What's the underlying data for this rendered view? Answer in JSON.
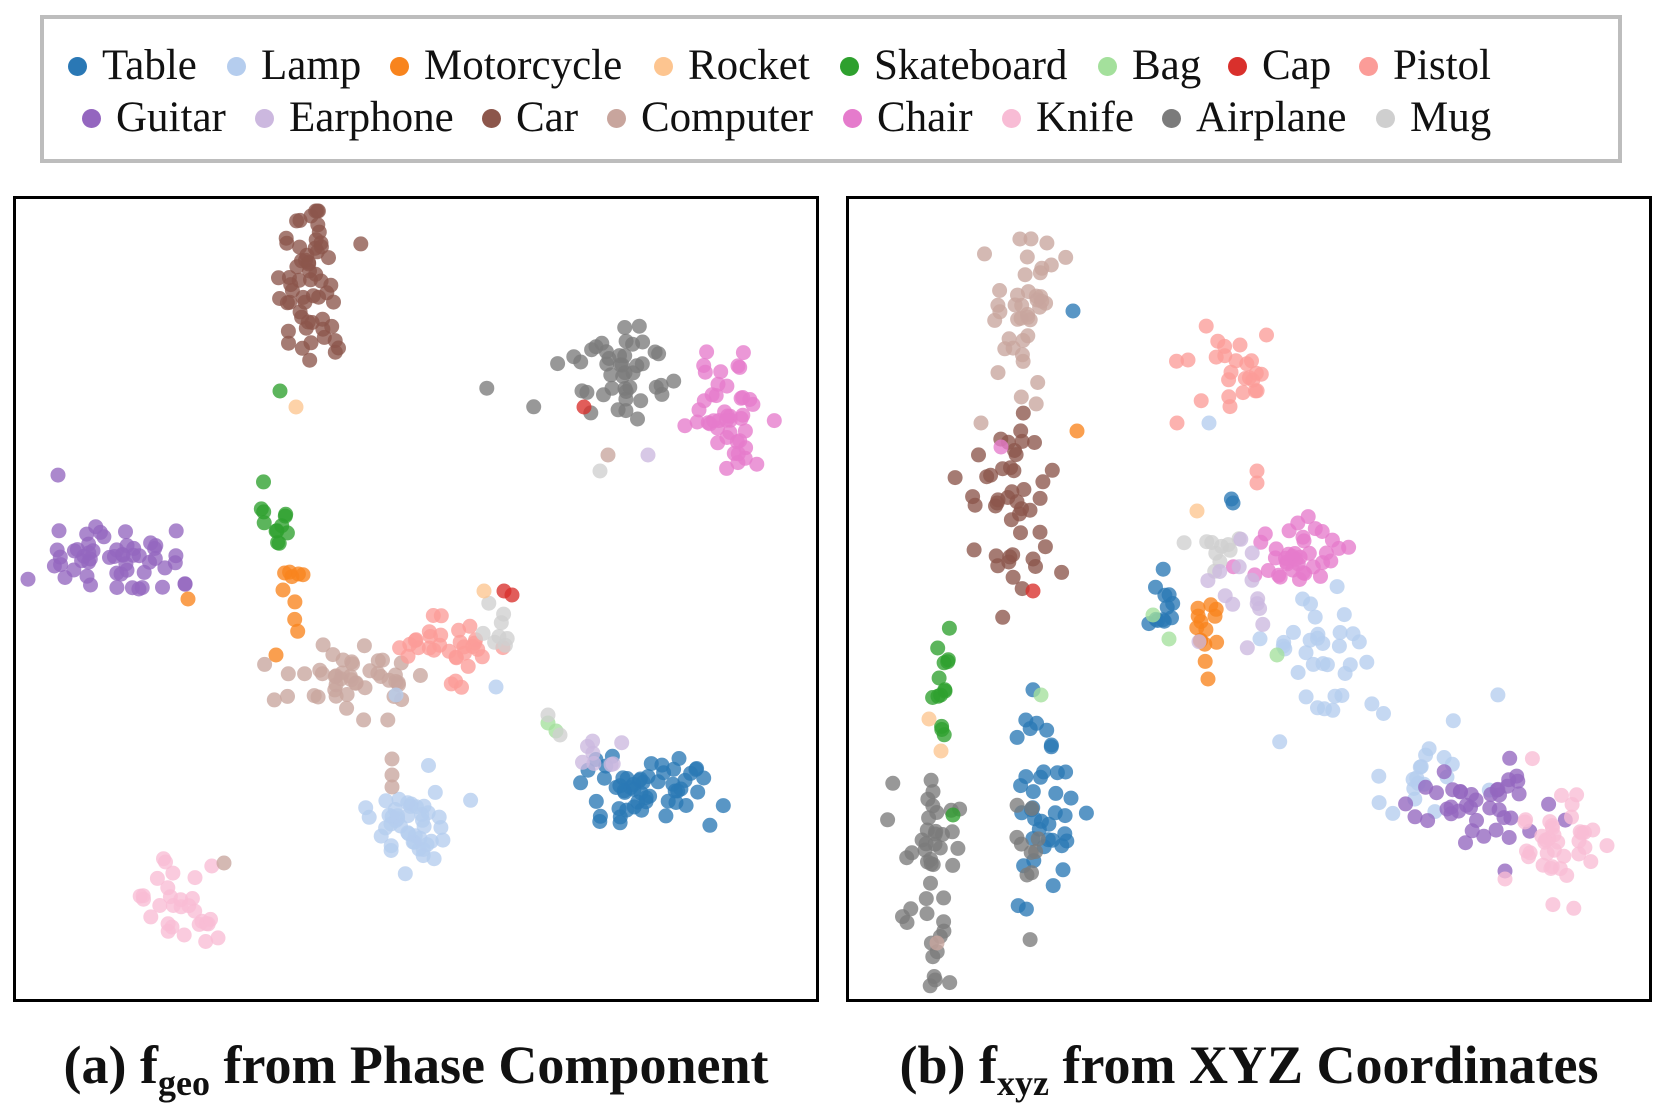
{
  "legend": {
    "items": [
      {
        "label": "Table",
        "color": "#2a78b5"
      },
      {
        "label": "Lamp",
        "color": "#b5cdee"
      },
      {
        "label": "Motorcycle",
        "color": "#f8841d"
      },
      {
        "label": "Rocket",
        "color": "#fdc590"
      },
      {
        "label": "Skateboard",
        "color": "#2ea02e"
      },
      {
        "label": "Bag",
        "color": "#a4e09c"
      },
      {
        "label": "Cap",
        "color": "#d9302c"
      },
      {
        "label": "Pistol",
        "color": "#fb9c98"
      },
      {
        "label": "Guitar",
        "color": "#9466bf"
      },
      {
        "label": "Earphone",
        "color": "#ccb8df"
      },
      {
        "label": "Car",
        "color": "#8c564b"
      },
      {
        "label": "Computer",
        "color": "#c8a59d"
      },
      {
        "label": "Chair",
        "color": "#e57bcc"
      },
      {
        "label": "Knife",
        "color": "#f8bcd5"
      },
      {
        "label": "Airplane",
        "color": "#7b7b7b"
      },
      {
        "label": "Mug",
        "color": "#cfcfcf"
      }
    ]
  },
  "captions": {
    "a": {
      "prefix": "(a) f",
      "sub": "geo",
      "suffix": " from Phase Component"
    },
    "b": {
      "prefix": "(b) f",
      "sub": "xyz",
      "suffix": " from XYZ Coordinates"
    }
  },
  "chart_data": [
    {
      "type": "scatter",
      "title": "(a) f_geo from Phase Component",
      "clusters": [
        {
          "series": "Car",
          "cx": 0.37,
          "cy": 0.1,
          "sx": 0.022,
          "sy": 0.06,
          "n": 60
        },
        {
          "series": "Airplane",
          "cx": 0.75,
          "cy": 0.22,
          "sx": 0.04,
          "sy": 0.035,
          "n": 45
        },
        {
          "series": "Chair",
          "cx": 0.89,
          "cy": 0.27,
          "sx": 0.025,
          "sy": 0.045,
          "n": 45
        },
        {
          "series": "Guitar",
          "cx": 0.13,
          "cy": 0.45,
          "sx": 0.05,
          "sy": 0.025,
          "n": 55
        },
        {
          "series": "Skateboard",
          "cx": 0.325,
          "cy": 0.4,
          "sx": 0.01,
          "sy": 0.02,
          "n": 12
        },
        {
          "series": "Motorcycle",
          "cx": 0.345,
          "cy": 0.48,
          "sx": 0.008,
          "sy": 0.025,
          "n": 9
        },
        {
          "series": "Computer",
          "cx": 0.41,
          "cy": 0.6,
          "sx": 0.04,
          "sy": 0.022,
          "n": 45
        },
        {
          "series": "Pistol",
          "cx": 0.55,
          "cy": 0.56,
          "sx": 0.028,
          "sy": 0.025,
          "n": 32
        },
        {
          "series": "Mug",
          "cx": 0.6,
          "cy": 0.54,
          "sx": 0.012,
          "sy": 0.015,
          "n": 8
        },
        {
          "series": "Table",
          "cx": 0.79,
          "cy": 0.74,
          "sx": 0.04,
          "sy": 0.022,
          "n": 55
        },
        {
          "series": "Earphone",
          "cx": 0.72,
          "cy": 0.69,
          "sx": 0.02,
          "sy": 0.012,
          "n": 8
        },
        {
          "series": "Lamp",
          "cx": 0.49,
          "cy": 0.78,
          "sx": 0.028,
          "sy": 0.025,
          "n": 45
        },
        {
          "series": "Knife",
          "cx": 0.205,
          "cy": 0.88,
          "sx": 0.022,
          "sy": 0.022,
          "n": 30
        }
      ],
      "points": [
        {
          "series": "Skateboard",
          "x": 0.33,
          "y": 0.24
        },
        {
          "series": "Rocket",
          "x": 0.35,
          "y": 0.26
        },
        {
          "series": "Cap",
          "x": 0.71,
          "y": 0.26
        },
        {
          "series": "Computer",
          "x": 0.74,
          "y": 0.32
        },
        {
          "series": "Earphone",
          "x": 0.79,
          "y": 0.32
        },
        {
          "series": "Mug",
          "x": 0.73,
          "y": 0.34
        },
        {
          "series": "Motorcycle",
          "x": 0.215,
          "y": 0.5
        },
        {
          "series": "Cap",
          "x": 0.61,
          "y": 0.49
        },
        {
          "series": "Cap",
          "x": 0.62,
          "y": 0.495
        },
        {
          "series": "Rocket",
          "x": 0.585,
          "y": 0.49
        },
        {
          "series": "Motorcycle",
          "x": 0.325,
          "y": 0.57
        },
        {
          "series": "Lamp",
          "x": 0.475,
          "y": 0.62
        },
        {
          "series": "Lamp",
          "x": 0.6,
          "y": 0.61
        },
        {
          "series": "Computer",
          "x": 0.47,
          "y": 0.7
        },
        {
          "series": "Computer",
          "x": 0.47,
          "y": 0.72
        },
        {
          "series": "Computer",
          "x": 0.47,
          "y": 0.735
        },
        {
          "series": "Bag",
          "x": 0.665,
          "y": 0.655
        },
        {
          "series": "Bag",
          "x": 0.675,
          "y": 0.665
        },
        {
          "series": "Mug",
          "x": 0.665,
          "y": 0.645
        },
        {
          "series": "Mug",
          "x": 0.68,
          "y": 0.67
        },
        {
          "series": "Computer",
          "x": 0.26,
          "y": 0.83
        }
      ]
    },
    {
      "type": "scatter",
      "title": "(b) f_xyz from XYZ Coordinates",
      "clusters": [
        {
          "series": "Computer",
          "cx": 0.22,
          "cy": 0.14,
          "sx": 0.025,
          "sy": 0.06,
          "n": 40
        },
        {
          "series": "Car",
          "cx": 0.2,
          "cy": 0.37,
          "sx": 0.03,
          "sy": 0.05,
          "n": 45
        },
        {
          "series": "Pistol",
          "cx": 0.48,
          "cy": 0.21,
          "sx": 0.03,
          "sy": 0.025,
          "n": 25
        },
        {
          "series": "Chair",
          "cx": 0.56,
          "cy": 0.45,
          "sx": 0.035,
          "sy": 0.022,
          "n": 38
        },
        {
          "series": "Lamp",
          "cx": 0.59,
          "cy": 0.57,
          "sx": 0.04,
          "sy": 0.035,
          "n": 35
        },
        {
          "series": "Table",
          "cx": 0.39,
          "cy": 0.5,
          "sx": 0.012,
          "sy": 0.03,
          "n": 12
        },
        {
          "series": "Motorcycle",
          "cx": 0.45,
          "cy": 0.53,
          "sx": 0.01,
          "sy": 0.03,
          "n": 14
        },
        {
          "series": "Mug",
          "cx": 0.46,
          "cy": 0.44,
          "sx": 0.018,
          "sy": 0.015,
          "n": 10
        },
        {
          "series": "Earphone",
          "cx": 0.49,
          "cy": 0.5,
          "sx": 0.025,
          "sy": 0.03,
          "n": 14
        },
        {
          "series": "Skateboard",
          "cx": 0.117,
          "cy": 0.59,
          "sx": 0.008,
          "sy": 0.04,
          "n": 14
        },
        {
          "series": "Airplane",
          "cx": 0.1,
          "cy": 0.84,
          "sx": 0.02,
          "sy": 0.07,
          "n": 45
        },
        {
          "series": "Table",
          "cx": 0.24,
          "cy": 0.76,
          "sx": 0.022,
          "sy": 0.07,
          "n": 40
        },
        {
          "series": "Airplane",
          "cx": 0.22,
          "cy": 0.82,
          "sx": 0.01,
          "sy": 0.03,
          "n": 10
        },
        {
          "series": "Lamp",
          "cx": 0.73,
          "cy": 0.72,
          "sx": 0.03,
          "sy": 0.03,
          "n": 20
        },
        {
          "series": "Guitar",
          "cx": 0.79,
          "cy": 0.76,
          "sx": 0.04,
          "sy": 0.025,
          "n": 40
        },
        {
          "series": "Knife",
          "cx": 0.89,
          "cy": 0.8,
          "sx": 0.03,
          "sy": 0.035,
          "n": 38
        }
      ],
      "points": [
        {
          "series": "Table",
          "x": 0.28,
          "y": 0.14
        },
        {
          "series": "Motorcycle",
          "x": 0.285,
          "y": 0.29
        },
        {
          "series": "Computer",
          "x": 0.165,
          "y": 0.28
        },
        {
          "series": "Chair",
          "x": 0.19,
          "y": 0.31
        },
        {
          "series": "Cap",
          "x": 0.23,
          "y": 0.49
        },
        {
          "series": "Car",
          "x": 0.23,
          "y": 0.45
        },
        {
          "series": "Lamp",
          "x": 0.45,
          "y": 0.28
        },
        {
          "series": "Pistol",
          "x": 0.41,
          "y": 0.28
        },
        {
          "series": "Pistol",
          "x": 0.51,
          "y": 0.34
        },
        {
          "series": "Pistol",
          "x": 0.51,
          "y": 0.355
        },
        {
          "series": "Table",
          "x": 0.48,
          "y": 0.38
        },
        {
          "series": "Table",
          "x": 0.478,
          "y": 0.375
        },
        {
          "series": "Rocket",
          "x": 0.435,
          "y": 0.39
        },
        {
          "series": "Bag",
          "x": 0.38,
          "y": 0.52
        },
        {
          "series": "Bag",
          "x": 0.4,
          "y": 0.55
        },
        {
          "series": "Bag",
          "x": 0.535,
          "y": 0.57
        },
        {
          "series": "Bag",
          "x": 0.24,
          "y": 0.62
        },
        {
          "series": "Rocket",
          "x": 0.1,
          "y": 0.65
        },
        {
          "series": "Rocket",
          "x": 0.115,
          "y": 0.69
        },
        {
          "series": "Skateboard",
          "x": 0.13,
          "y": 0.77
        },
        {
          "series": "Computer",
          "x": 0.11,
          "y": 0.93
        },
        {
          "series": "Guitar",
          "x": 0.82,
          "y": 0.84
        },
        {
          "series": "Knife",
          "x": 0.82,
          "y": 0.85
        }
      ]
    }
  ]
}
